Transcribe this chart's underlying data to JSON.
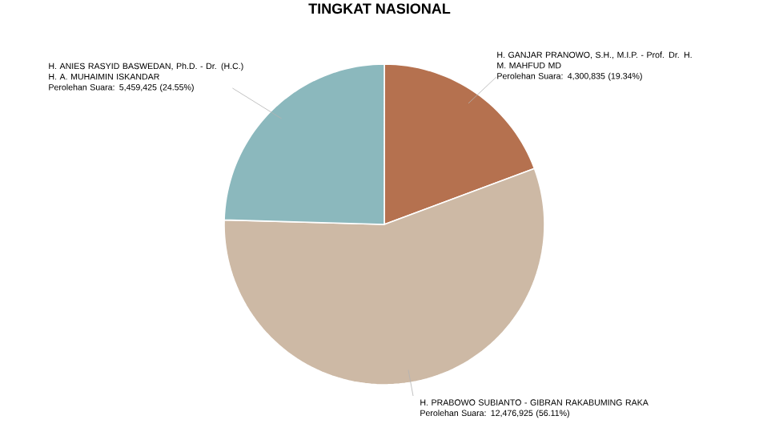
{
  "chart_data": {
    "type": "pie",
    "title": "TINGKAT NASIONAL",
    "categories": [
      "H. GANJAR PRANOWO, S.H., M.I.P. - Prof. Dr. H. M. MAHFUD MD",
      "H. PRABOWO SUBIANTO - GIBRAN RAKABUMING RAKA",
      "H. ANIES RASYID BASWEDAN, Ph.D. - Dr. (H.C.) H. A. MUHAIMIN ISKANDAR"
    ],
    "values": [
      4300835,
      12476925,
      5459425
    ],
    "value_labels": [
      "Perolehan Suara: 4,300,835 (19.34%)",
      "Perolehan Suara: 12,476,925 (56.11%)",
      "Perolehan Suara: 5,459,425 (24.55%)"
    ],
    "colors": [
      "#b5714f",
      "#cdb9a5",
      "#8bb8bd"
    ]
  }
}
